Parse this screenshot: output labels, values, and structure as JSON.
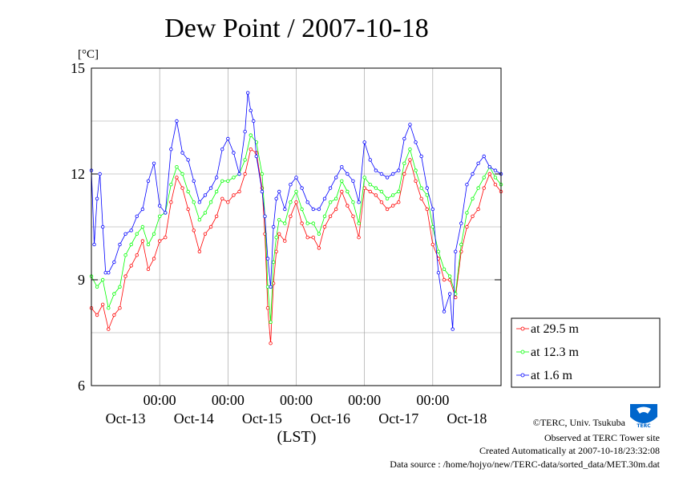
{
  "chart_data": {
    "type": "line",
    "title": "Dew Point / 2007-10-18",
    "ylabel": "[°C]",
    "xlabel": "(LST)",
    "ylim": [
      6,
      15
    ],
    "yticks": [
      "6",
      "9",
      "12",
      "15"
    ],
    "x_range_hours": [
      0,
      144
    ],
    "time_label": "00:00",
    "date_ticks": [
      {
        "label": "Oct-13",
        "hour": 24
      },
      {
        "label": "Oct-14",
        "hour": 48
      },
      {
        "label": "Oct-15",
        "hour": 72
      },
      {
        "label": "Oct-16",
        "hour": 96
      },
      {
        "label": "Oct-17",
        "hour": 120
      },
      {
        "label": "Oct-18",
        "hour": 144
      }
    ],
    "grid": true,
    "legend_position": "right",
    "series": [
      {
        "name": "at 29.5 m",
        "color": "#ff0000",
        "points": [
          [
            0,
            8.2
          ],
          [
            2,
            8.0
          ],
          [
            4,
            8.3
          ],
          [
            6,
            7.6
          ],
          [
            8,
            8.0
          ],
          [
            10,
            8.2
          ],
          [
            12,
            9.1
          ],
          [
            14,
            9.4
          ],
          [
            16,
            9.7
          ],
          [
            18,
            10.1
          ],
          [
            20,
            9.3
          ],
          [
            22,
            9.6
          ],
          [
            24,
            10.1
          ],
          [
            26,
            10.2
          ],
          [
            28,
            11.2
          ],
          [
            30,
            11.9
          ],
          [
            32,
            11.6
          ],
          [
            34,
            11.0
          ],
          [
            36,
            10.4
          ],
          [
            38,
            9.8
          ],
          [
            40,
            10.3
          ],
          [
            42,
            10.5
          ],
          [
            44,
            10.8
          ],
          [
            46,
            11.3
          ],
          [
            48,
            11.2
          ],
          [
            50,
            11.4
          ],
          [
            52,
            11.5
          ],
          [
            54,
            12.0
          ],
          [
            56,
            12.7
          ],
          [
            58,
            12.6
          ],
          [
            60,
            11.6
          ],
          [
            61,
            10.3
          ],
          [
            62,
            8.2
          ],
          [
            63,
            7.2
          ],
          [
            64,
            8.9
          ],
          [
            65,
            9.8
          ],
          [
            66,
            10.3
          ],
          [
            68,
            10.1
          ],
          [
            70,
            10.8
          ],
          [
            72,
            11.2
          ],
          [
            74,
            10.6
          ],
          [
            76,
            10.2
          ],
          [
            78,
            10.2
          ],
          [
            80,
            9.9
          ],
          [
            82,
            10.5
          ],
          [
            84,
            10.8
          ],
          [
            86,
            11.0
          ],
          [
            88,
            11.5
          ],
          [
            90,
            11.1
          ],
          [
            92,
            10.8
          ],
          [
            94,
            10.2
          ],
          [
            96,
            11.6
          ],
          [
            98,
            11.5
          ],
          [
            100,
            11.4
          ],
          [
            102,
            11.2
          ],
          [
            104,
            11.0
          ],
          [
            106,
            11.1
          ],
          [
            108,
            11.2
          ],
          [
            110,
            12.0
          ],
          [
            112,
            12.4
          ],
          [
            114,
            11.8
          ],
          [
            116,
            11.3
          ],
          [
            118,
            11.0
          ],
          [
            120,
            10.0
          ],
          [
            122,
            9.6
          ],
          [
            124,
            9.0
          ],
          [
            126,
            9.0
          ],
          [
            128,
            8.5
          ],
          [
            130,
            9.8
          ],
          [
            132,
            10.5
          ],
          [
            134,
            10.8
          ],
          [
            136,
            11.0
          ],
          [
            138,
            11.6
          ],
          [
            140,
            12.0
          ],
          [
            142,
            11.7
          ],
          [
            144,
            11.5
          ]
        ]
      },
      {
        "name": "at 12.3 m",
        "color": "#00ff00",
        "points": [
          [
            0,
            9.1
          ],
          [
            2,
            8.8
          ],
          [
            4,
            9.0
          ],
          [
            6,
            8.2
          ],
          [
            8,
            8.6
          ],
          [
            10,
            8.8
          ],
          [
            12,
            9.7
          ],
          [
            14,
            10.0
          ],
          [
            16,
            10.3
          ],
          [
            18,
            10.5
          ],
          [
            20,
            10.0
          ],
          [
            22,
            10.3
          ],
          [
            24,
            10.8
          ],
          [
            26,
            10.9
          ],
          [
            28,
            11.7
          ],
          [
            30,
            12.2
          ],
          [
            32,
            12.0
          ],
          [
            34,
            11.5
          ],
          [
            36,
            11.2
          ],
          [
            38,
            10.7
          ],
          [
            40,
            10.9
          ],
          [
            42,
            11.2
          ],
          [
            44,
            11.5
          ],
          [
            46,
            11.8
          ],
          [
            48,
            11.8
          ],
          [
            50,
            11.9
          ],
          [
            52,
            12.0
          ],
          [
            54,
            12.4
          ],
          [
            56,
            13.1
          ],
          [
            58,
            12.9
          ],
          [
            60,
            12.0
          ],
          [
            61,
            10.8
          ],
          [
            62,
            8.8
          ],
          [
            63,
            7.8
          ],
          [
            64,
            9.5
          ],
          [
            65,
            10.2
          ],
          [
            66,
            10.7
          ],
          [
            68,
            10.6
          ],
          [
            70,
            11.2
          ],
          [
            72,
            11.5
          ],
          [
            74,
            11.0
          ],
          [
            76,
            10.6
          ],
          [
            78,
            10.6
          ],
          [
            80,
            10.3
          ],
          [
            82,
            10.8
          ],
          [
            84,
            11.2
          ],
          [
            86,
            11.3
          ],
          [
            88,
            11.8
          ],
          [
            90,
            11.5
          ],
          [
            92,
            11.2
          ],
          [
            94,
            10.6
          ],
          [
            96,
            11.9
          ],
          [
            98,
            11.7
          ],
          [
            100,
            11.6
          ],
          [
            102,
            11.5
          ],
          [
            104,
            11.3
          ],
          [
            106,
            11.4
          ],
          [
            108,
            11.5
          ],
          [
            110,
            12.3
          ],
          [
            112,
            12.7
          ],
          [
            114,
            12.1
          ],
          [
            116,
            11.6
          ],
          [
            118,
            11.4
          ],
          [
            120,
            10.5
          ],
          [
            122,
            9.8
          ],
          [
            124,
            9.3
          ],
          [
            126,
            9.1
          ],
          [
            128,
            8.6
          ],
          [
            130,
            10.0
          ],
          [
            132,
            10.9
          ],
          [
            134,
            11.3
          ],
          [
            136,
            11.6
          ],
          [
            138,
            11.9
          ],
          [
            140,
            12.2
          ],
          [
            142,
            11.9
          ],
          [
            144,
            11.7
          ]
        ]
      },
      {
        "name": "at 1.6 m",
        "color": "#0000ff",
        "points": [
          [
            0,
            12.1
          ],
          [
            1,
            10.0
          ],
          [
            2,
            11.3
          ],
          [
            3,
            12.0
          ],
          [
            4,
            10.5
          ],
          [
            5,
            9.2
          ],
          [
            6,
            9.2
          ],
          [
            8,
            9.5
          ],
          [
            10,
            10.0
          ],
          [
            12,
            10.3
          ],
          [
            14,
            10.4
          ],
          [
            16,
            10.8
          ],
          [
            18,
            11.0
          ],
          [
            20,
            11.8
          ],
          [
            22,
            12.3
          ],
          [
            24,
            11.1
          ],
          [
            26,
            10.9
          ],
          [
            28,
            12.7
          ],
          [
            30,
            13.5
          ],
          [
            32,
            12.6
          ],
          [
            34,
            12.4
          ],
          [
            36,
            11.8
          ],
          [
            38,
            11.2
          ],
          [
            40,
            11.4
          ],
          [
            42,
            11.6
          ],
          [
            44,
            11.9
          ],
          [
            46,
            12.7
          ],
          [
            48,
            13.0
          ],
          [
            50,
            12.6
          ],
          [
            52,
            12.0
          ],
          [
            54,
            13.2
          ],
          [
            55,
            14.3
          ],
          [
            56,
            13.8
          ],
          [
            57,
            13.5
          ],
          [
            58,
            12.5
          ],
          [
            60,
            11.5
          ],
          [
            61,
            10.8
          ],
          [
            62,
            9.6
          ],
          [
            63,
            8.8
          ],
          [
            64,
            10.5
          ],
          [
            65,
            11.3
          ],
          [
            66,
            11.5
          ],
          [
            68,
            11.0
          ],
          [
            70,
            11.7
          ],
          [
            72,
            11.9
          ],
          [
            74,
            11.6
          ],
          [
            76,
            11.2
          ],
          [
            78,
            11.0
          ],
          [
            80,
            11.0
          ],
          [
            82,
            11.3
          ],
          [
            84,
            11.6
          ],
          [
            86,
            11.9
          ],
          [
            88,
            12.2
          ],
          [
            90,
            12.0
          ],
          [
            92,
            11.8
          ],
          [
            94,
            11.2
          ],
          [
            96,
            12.9
          ],
          [
            98,
            12.4
          ],
          [
            100,
            12.1
          ],
          [
            102,
            12.0
          ],
          [
            104,
            11.9
          ],
          [
            106,
            12.0
          ],
          [
            108,
            12.1
          ],
          [
            110,
            13.0
          ],
          [
            112,
            13.4
          ],
          [
            114,
            12.9
          ],
          [
            116,
            12.5
          ],
          [
            118,
            11.6
          ],
          [
            120,
            11.0
          ],
          [
            122,
            9.2
          ],
          [
            124,
            8.1
          ],
          [
            126,
            8.6
          ],
          [
            127,
            7.6
          ],
          [
            128,
            9.8
          ],
          [
            130,
            10.6
          ],
          [
            132,
            11.7
          ],
          [
            134,
            12.0
          ],
          [
            136,
            12.3
          ],
          [
            138,
            12.5
          ],
          [
            140,
            12.2
          ],
          [
            142,
            12.1
          ],
          [
            144,
            12.0
          ]
        ]
      }
    ]
  },
  "credits": {
    "copyright": "©TERC, Univ. Tsukuba",
    "observed": "Observed at TERC Tower site",
    "created": "Created Automatically at 2007-10-18/23:32:08",
    "source": "Data source : /home/hojyo/new/TERC-data/sorted_data/MET.30m.dat"
  },
  "logo": {
    "text": "TERC",
    "color": "#0066cc"
  }
}
